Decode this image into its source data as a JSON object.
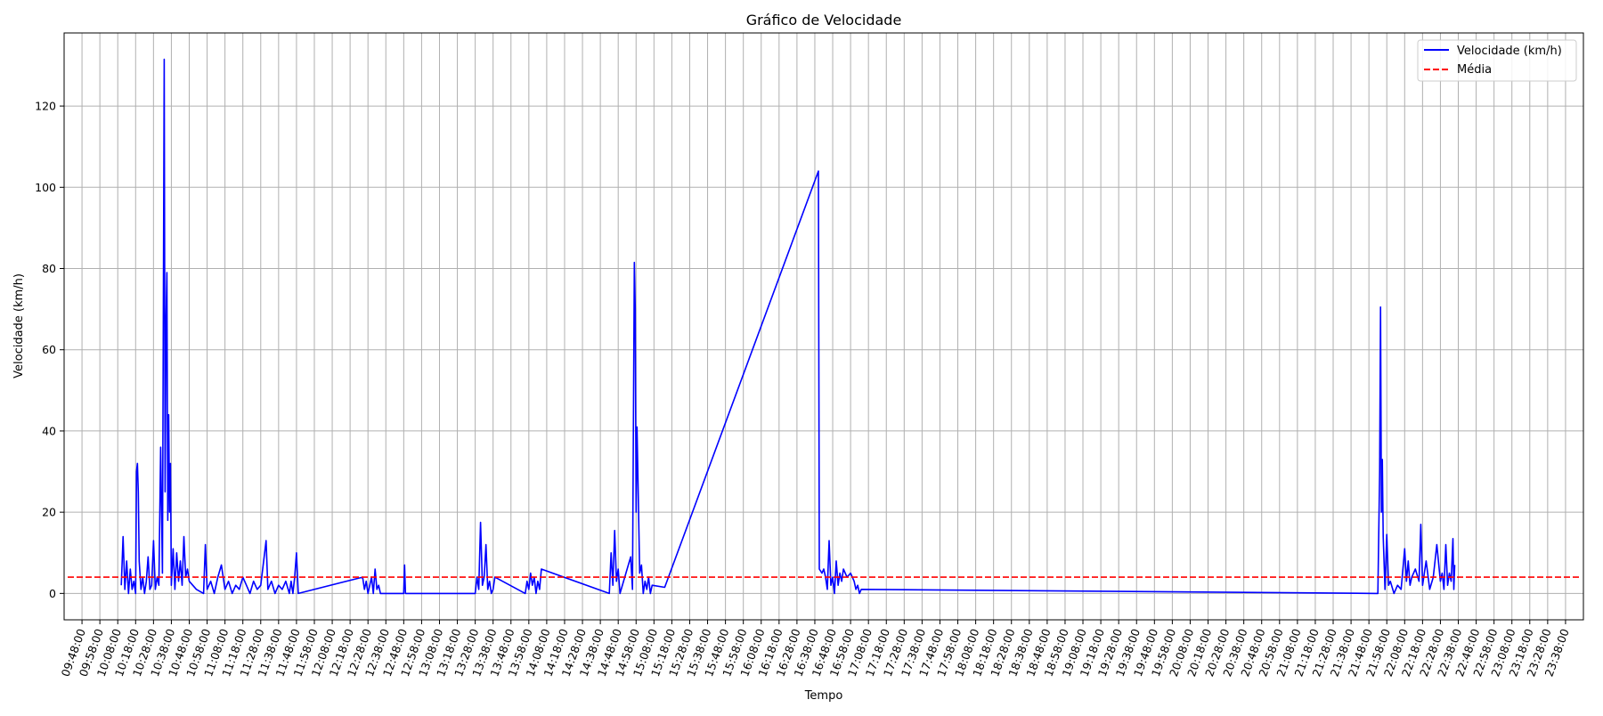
{
  "chart_data": {
    "type": "line",
    "title": "Gráfico de Velocidade",
    "xlabel": "Tempo",
    "ylabel": "Velocidade (km/h)",
    "x_unit": "time HH:MM",
    "xlim": [
      "09:38",
      "23:48"
    ],
    "ylim": [
      -6.5,
      138
    ],
    "y_ticks": [
      0,
      20,
      40,
      60,
      80,
      100,
      120
    ],
    "y_tick_labels": [
      "0",
      "20",
      "40",
      "60",
      "80",
      "100",
      "120"
    ],
    "x_tick_labels": [
      "09:48:00",
      "09:58:00",
      "10:08:00",
      "10:18:00",
      "10:28:00",
      "10:38:00",
      "10:48:00",
      "10:58:00",
      "11:08:00",
      "11:18:00",
      "11:28:00",
      "11:38:00",
      "11:48:00",
      "11:58:00",
      "12:08:00",
      "12:18:00",
      "12:28:00",
      "12:38:00",
      "12:48:00",
      "12:58:00",
      "13:08:00",
      "13:18:00",
      "13:28:00",
      "13:38:00",
      "13:48:00",
      "13:58:00",
      "14:08:00",
      "14:18:00",
      "14:28:00",
      "14:38:00",
      "14:48:00",
      "14:58:00",
      "15:08:00",
      "15:18:00",
      "15:28:00",
      "15:38:00",
      "15:48:00",
      "15:58:00",
      "16:08:00",
      "16:18:00",
      "16:28:00",
      "16:38:00",
      "16:48:00",
      "16:58:00",
      "17:08:00",
      "17:18:00",
      "17:28:00",
      "17:38:00",
      "17:48:00",
      "17:58:00",
      "18:08:00",
      "18:18:00",
      "18:28:00",
      "18:38:00",
      "18:48:00",
      "18:58:00",
      "19:08:00",
      "19:18:00",
      "19:28:00",
      "19:38:00",
      "19:48:00",
      "19:58:00",
      "20:08:00",
      "20:18:00",
      "20:28:00",
      "20:38:00",
      "20:48:00",
      "20:58:00",
      "21:08:00",
      "21:18:00",
      "21:28:00",
      "21:38:00",
      "21:48:00",
      "21:58:00",
      "22:08:00",
      "22:18:00",
      "22:28:00",
      "22:38:00",
      "22:48:00",
      "22:58:00",
      "23:08:00",
      "23:18:00",
      "23:28:00",
      "23:38:00"
    ],
    "grid": true,
    "legend_position": "top-right",
    "series": [
      {
        "name": "Velocidade (km/h)",
        "color": "#0000ff",
        "style": "solid",
        "points": [
          [
            "10:10",
            2
          ],
          [
            "10:11",
            14
          ],
          [
            "10:12",
            1
          ],
          [
            "10:13",
            8
          ],
          [
            "10:14",
            0
          ],
          [
            "10:15",
            6
          ],
          [
            "10:16",
            1
          ],
          [
            "10:17",
            3
          ],
          [
            "10:18",
            0
          ],
          [
            "10:18.5",
            30
          ],
          [
            "10:19",
            32
          ],
          [
            "10:19.5",
            25
          ],
          [
            "10:20",
            8
          ],
          [
            "10:21",
            1
          ],
          [
            "10:22",
            4
          ],
          [
            "10:23",
            0
          ],
          [
            "10:24",
            3
          ],
          [
            "10:25",
            9
          ],
          [
            "10:26",
            1
          ],
          [
            "10:27",
            2
          ],
          [
            "10:28",
            13
          ],
          [
            "10:29",
            1
          ],
          [
            "10:30",
            4
          ],
          [
            "10:31",
            2
          ],
          [
            "10:32",
            36
          ],
          [
            "10:33",
            5
          ],
          [
            "10:34",
            131.5
          ],
          [
            "10:34.5",
            25
          ],
          [
            "10:35",
            66
          ],
          [
            "10:35.5",
            79
          ],
          [
            "10:36",
            18
          ],
          [
            "10:36.5",
            44
          ],
          [
            "10:37",
            20
          ],
          [
            "10:37.5",
            32
          ],
          [
            "10:38",
            2
          ],
          [
            "10:39",
            11
          ],
          [
            "10:40",
            1
          ],
          [
            "10:41",
            10
          ],
          [
            "10:42",
            3
          ],
          [
            "10:43",
            8
          ],
          [
            "10:44",
            2
          ],
          [
            "10:45",
            14
          ],
          [
            "10:46",
            4
          ],
          [
            "10:47",
            6
          ],
          [
            "10:48",
            3
          ],
          [
            "10:52",
            1
          ],
          [
            "10:56",
            0
          ],
          [
            "10:57",
            12
          ],
          [
            "10:58",
            1
          ],
          [
            "11:00",
            3
          ],
          [
            "11:02",
            0
          ],
          [
            "11:04",
            4
          ],
          [
            "11:06",
            7
          ],
          [
            "11:08",
            1
          ],
          [
            "11:10",
            3
          ],
          [
            "11:12",
            0
          ],
          [
            "11:14",
            2
          ],
          [
            "11:16",
            1
          ],
          [
            "11:18",
            4
          ],
          [
            "11:20",
            2
          ],
          [
            "11:22",
            0
          ],
          [
            "11:24",
            3
          ],
          [
            "11:26",
            1
          ],
          [
            "11:28",
            2
          ],
          [
            "11:31",
            13
          ],
          [
            "11:32",
            1
          ],
          [
            "11:34",
            3
          ],
          [
            "11:36",
            0
          ],
          [
            "11:38",
            2
          ],
          [
            "11:40",
            1
          ],
          [
            "11:42",
            3
          ],
          [
            "11:44",
            0
          ],
          [
            "11:45",
            3
          ],
          [
            "11:46",
            0
          ],
          [
            "11:47",
            4
          ],
          [
            "11:48",
            10
          ],
          [
            "11:49",
            0
          ],
          [
            "12:25",
            4
          ],
          [
            "12:26",
            1
          ],
          [
            "12:27",
            3
          ],
          [
            "12:28",
            0
          ],
          [
            "12:30",
            4
          ],
          [
            "12:31",
            0
          ],
          [
            "12:32",
            6
          ],
          [
            "12:33",
            1
          ],
          [
            "12:34",
            2
          ],
          [
            "12:35",
            0
          ],
          [
            "12:37",
            0
          ],
          [
            "12:48",
            0
          ],
          [
            "12:48.5",
            7
          ],
          [
            "12:49",
            0
          ],
          [
            "13:28",
            0
          ],
          [
            "13:29",
            4
          ],
          [
            "13:30",
            1
          ],
          [
            "13:31",
            17.5
          ],
          [
            "13:32",
            2
          ],
          [
            "13:33",
            4
          ],
          [
            "13:34",
            12
          ],
          [
            "13:35",
            1
          ],
          [
            "13:36",
            3
          ],
          [
            "13:37",
            0
          ],
          [
            "13:38",
            1
          ],
          [
            "13:39",
            4
          ],
          [
            "13:56",
            0
          ],
          [
            "13:57",
            3
          ],
          [
            "13:58",
            1
          ],
          [
            "13:59",
            5
          ],
          [
            "14:00",
            2
          ],
          [
            "14:01",
            4
          ],
          [
            "14:02",
            0
          ],
          [
            "14:03",
            3
          ],
          [
            "14:04",
            1
          ],
          [
            "14:05",
            6
          ],
          [
            "14:43",
            0
          ],
          [
            "14:44",
            10
          ],
          [
            "14:45",
            2
          ],
          [
            "14:46",
            15.5
          ],
          [
            "14:47",
            3
          ],
          [
            "14:48",
            6
          ],
          [
            "14:49",
            0
          ],
          [
            "14:55",
            9
          ],
          [
            "14:56",
            1
          ],
          [
            "14:57",
            81.5
          ],
          [
            "14:57.5",
            70
          ],
          [
            "14:58",
            20
          ],
          [
            "14:58.5",
            41
          ],
          [
            "14:59",
            29
          ],
          [
            "15:00",
            5
          ],
          [
            "15:01",
            7
          ],
          [
            "15:02",
            0
          ],
          [
            "15:03",
            3
          ],
          [
            "15:04",
            1
          ],
          [
            "15:05",
            4
          ],
          [
            "15:06",
            0
          ],
          [
            "15:07",
            2
          ],
          [
            "15:14",
            1.5
          ],
          [
            "16:40",
            104
          ],
          [
            "16:40.5",
            6
          ],
          [
            "16:42",
            5
          ],
          [
            "16:43",
            6
          ],
          [
            "16:44",
            4
          ],
          [
            "16:45",
            1
          ],
          [
            "16:46",
            13
          ],
          [
            "16:47",
            2
          ],
          [
            "16:48",
            4
          ],
          [
            "16:49",
            0
          ],
          [
            "16:50",
            8
          ],
          [
            "16:51",
            2
          ],
          [
            "16:52",
            5
          ],
          [
            "16:53",
            3
          ],
          [
            "16:54",
            6
          ],
          [
            "16:56",
            4
          ],
          [
            "16:58",
            5
          ],
          [
            "17:00",
            3
          ],
          [
            "17:01",
            1
          ],
          [
            "17:02",
            2
          ],
          [
            "17:03",
            0
          ],
          [
            "17:04",
            1
          ],
          [
            "21:53",
            0
          ],
          [
            "21:54",
            30
          ],
          [
            "21:54.5",
            70.5
          ],
          [
            "21:55",
            20
          ],
          [
            "21:55.5",
            33
          ],
          [
            "21:56",
            14
          ],
          [
            "21:57",
            1
          ],
          [
            "21:58",
            14.5
          ],
          [
            "21:59",
            2
          ],
          [
            "22:00",
            3
          ],
          [
            "22:02",
            0
          ],
          [
            "22:04",
            2
          ],
          [
            "22:06",
            1
          ],
          [
            "22:08",
            11
          ],
          [
            "22:09",
            3
          ],
          [
            "22:10",
            8
          ],
          [
            "22:11",
            2
          ],
          [
            "22:12",
            4
          ],
          [
            "22:14",
            6
          ],
          [
            "22:16",
            3
          ],
          [
            "22:17",
            17
          ],
          [
            "22:18",
            2
          ],
          [
            "22:20",
            8
          ],
          [
            "22:22",
            1
          ],
          [
            "22:24",
            4
          ],
          [
            "22:26",
            12
          ],
          [
            "22:28",
            3
          ],
          [
            "22:29",
            5
          ],
          [
            "22:30",
            1
          ],
          [
            "22:31",
            12
          ],
          [
            "22:32",
            2
          ],
          [
            "22:33",
            5
          ],
          [
            "22:34",
            3
          ],
          [
            "22:35",
            13.5
          ],
          [
            "22:35.5",
            1
          ],
          [
            "22:36",
            7
          ]
        ]
      },
      {
        "name": "Média",
        "color": "#ff0000",
        "style": "dashed",
        "points": [
          [
            "09:40",
            4
          ],
          [
            "23:47",
            4
          ]
        ]
      }
    ]
  }
}
